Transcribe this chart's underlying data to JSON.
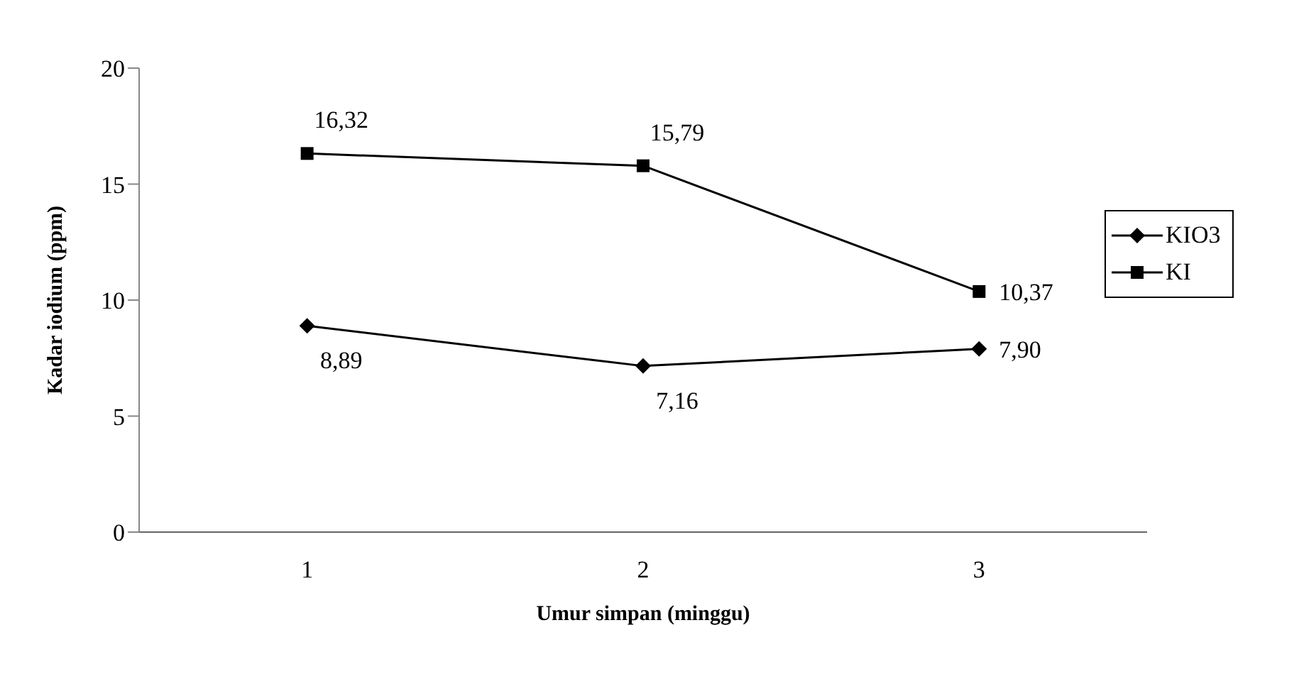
{
  "chart_data": {
    "type": "line",
    "xlabel": "Umur simpan (minggu)",
    "ylabel": "Kadar iodium (ppm)",
    "categories": [
      "1",
      "2",
      "3"
    ],
    "series": [
      {
        "name": "KIO3",
        "color": "#000000",
        "marker": "diamond",
        "values": [
          8.89,
          7.16,
          7.9
        ],
        "value_labels": [
          "8,89",
          "7,16",
          "7,90"
        ]
      },
      {
        "name": "KI",
        "color": "#000000",
        "marker": "square",
        "values": [
          16.32,
          15.79,
          10.37
        ],
        "value_labels": [
          "16,32",
          "15,79",
          "10,37"
        ]
      }
    ],
    "ylim": [
      0,
      20
    ],
    "yticks": [
      0,
      5,
      10,
      15,
      20
    ],
    "grid": false,
    "legend": "right",
    "line_style": "solid"
  }
}
